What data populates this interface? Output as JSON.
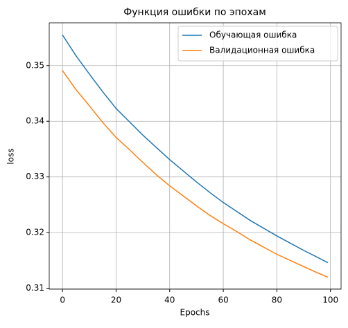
{
  "chart_data": {
    "type": "line",
    "title": "Функция ошибки по эпохам",
    "x_label": "Epochs",
    "y_label": "loss",
    "x": [
      0,
      5,
      10,
      15,
      20,
      25,
      30,
      35,
      40,
      45,
      50,
      55,
      60,
      65,
      70,
      75,
      80,
      85,
      90,
      95,
      99
    ],
    "series": [
      {
        "name": "Обучающая ошибка",
        "color": "#1f77b4",
        "values": [
          0.3555,
          0.3518,
          0.3485,
          0.3453,
          0.3423,
          0.3399,
          0.3375,
          0.3353,
          0.3331,
          0.3311,
          0.3291,
          0.3272,
          0.3254,
          0.3238,
          0.3222,
          0.3208,
          0.3194,
          0.3181,
          0.3168,
          0.3156,
          0.3146
        ]
      },
      {
        "name": "Валидационная ошибка",
        "color": "#ff7f0e",
        "values": [
          0.3491,
          0.3457,
          0.3428,
          0.3398,
          0.3371,
          0.3349,
          0.3326,
          0.3304,
          0.3284,
          0.3266,
          0.3248,
          0.3231,
          0.3216,
          0.3202,
          0.3187,
          0.3174,
          0.3161,
          0.315,
          0.3139,
          0.3128,
          0.312
        ]
      }
    ],
    "xlim": [
      -4.95,
      103.95
    ],
    "ylim": [
      0.309825,
      0.357675
    ],
    "xticks": [
      0,
      20,
      40,
      60,
      80,
      100
    ],
    "yticks": [
      0.31,
      0.32,
      0.33,
      0.34,
      0.35
    ],
    "grid": true,
    "legend": "upper-right"
  }
}
